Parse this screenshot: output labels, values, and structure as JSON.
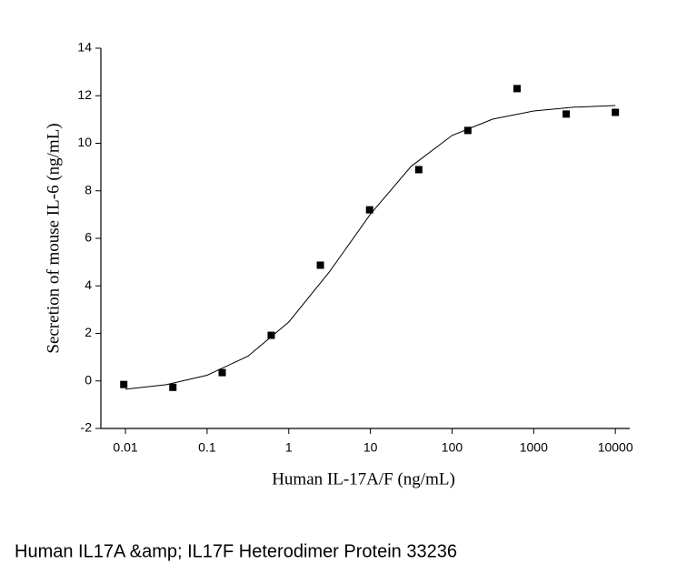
{
  "chart_data": {
    "type": "scatter",
    "x_label": "Human IL-17A/F (ng/mL)",
    "y_label": "Secretion of mouse IL-6 (ng/mL)",
    "x_log": true,
    "xlim": [
      0.005,
      15000
    ],
    "xticks": [
      0.01,
      0.1,
      1,
      10,
      100,
      1000,
      10000
    ],
    "ylim": [
      -2,
      14
    ],
    "yticks": [
      -2,
      0,
      2,
      4,
      6,
      8,
      10,
      12,
      14
    ],
    "series": [
      {
        "style": "markers",
        "color": "#000000",
        "x": [
          0.00954,
          0.0381,
          0.153,
          0.61,
          2.44,
          9.77,
          39.1,
          156,
          625,
          2500,
          10000
        ],
        "values": [
          -0.15,
          -0.27,
          0.35,
          1.92,
          4.87,
          7.2,
          8.89,
          10.54,
          12.3,
          11.23,
          11.3
        ]
      },
      {
        "style": "line",
        "color": "#000000",
        "x": [
          0.01,
          0.0316,
          0.1,
          0.316,
          1,
          3.16,
          10,
          31.6,
          100,
          316,
          1000,
          3162,
          10000
        ],
        "values": [
          -0.35,
          -0.16,
          0.24,
          1.04,
          2.48,
          4.6,
          7.02,
          9.03,
          10.33,
          11.02,
          11.36,
          11.52,
          11.59
        ]
      }
    ]
  },
  "caption": "Human IL17A &amp; IL17F Heterodimer Protein 33236"
}
